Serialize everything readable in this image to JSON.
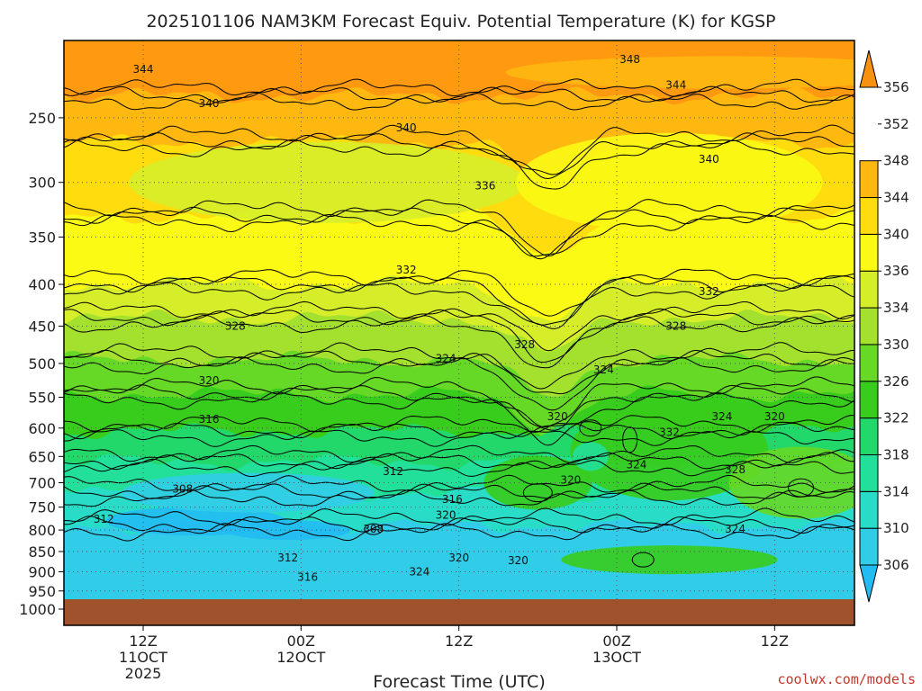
{
  "chart_data": {
    "type": "heatmap",
    "title": "2025101106 NAM3KM Forecast Equiv. Potential Temperature (K) for KGSP",
    "xlabel": "Forecast Time (UTC)",
    "ylabel": "",
    "y_scale": "log-pressure",
    "y_direction": "inverted",
    "ylim": [
      1000,
      200
    ],
    "y_ticks": [
      250,
      300,
      350,
      400,
      450,
      500,
      550,
      600,
      650,
      700,
      750,
      800,
      850,
      900,
      950,
      1000
    ],
    "x_ticks": [
      {
        "hour": 6,
        "line1": "12Z",
        "line2": "11OCT",
        "line3": "2025"
      },
      {
        "hour": 18,
        "line1": "00Z",
        "line2": "12OCT",
        "line3": ""
      },
      {
        "hour": 30,
        "line1": "12Z",
        "line2": "",
        "line3": ""
      },
      {
        "hour": 42,
        "line1": "00Z",
        "line2": "13OCT",
        "line3": ""
      },
      {
        "hour": 54,
        "line1": "12Z",
        "line2": "",
        "line3": ""
      }
    ],
    "xlim": [
      0,
      60
    ],
    "colorbar": {
      "levels": [
        306,
        310,
        314,
        318,
        322,
        326,
        330,
        334,
        336,
        340,
        344,
        348,
        352,
        356
      ],
      "colors": [
        "#22bbf2",
        "#31cde8",
        "#29dcc8",
        "#22e09a",
        "#22d86a",
        "#38cc1c",
        "#66d826",
        "#a4e02e",
        "#d6ee2a",
        "#fafa14",
        "#ffdc0e",
        "#ffb810",
        "#f69210"
      ]
    },
    "ground_color": "#a0522d",
    "contour_interval": 4,
    "labeled_contours": [
      {
        "v": "344",
        "h": 6,
        "p": 218
      },
      {
        "v": "348",
        "h": 43,
        "p": 212
      },
      {
        "v": "344",
        "h": 46.5,
        "p": 228
      },
      {
        "v": "340",
        "h": 11,
        "p": 240
      },
      {
        "v": "340",
        "h": 26,
        "p": 257
      },
      {
        "v": "340",
        "h": 49,
        "p": 281
      },
      {
        "v": "336",
        "h": 32,
        "p": 303
      },
      {
        "v": "332",
        "h": 26,
        "p": 384
      },
      {
        "v": "332",
        "h": 49,
        "p": 408
      },
      {
        "v": "328",
        "h": 13,
        "p": 450
      },
      {
        "v": "328",
        "h": 46.5,
        "p": 450
      },
      {
        "v": "328",
        "h": 35,
        "p": 474
      },
      {
        "v": "324",
        "h": 29,
        "p": 493
      },
      {
        "v": "324",
        "h": 41,
        "p": 509
      },
      {
        "v": "320",
        "h": 11,
        "p": 525
      },
      {
        "v": "316",
        "h": 11,
        "p": 585
      },
      {
        "v": "320",
        "h": 37.5,
        "p": 581
      },
      {
        "v": "320",
        "h": 54,
        "p": 581
      },
      {
        "v": "324",
        "h": 50,
        "p": 581
      },
      {
        "v": "332",
        "h": 46,
        "p": 607
      },
      {
        "v": "324",
        "h": 43.5,
        "p": 665
      },
      {
        "v": "328",
        "h": 51,
        "p": 675
      },
      {
        "v": "312",
        "h": 25,
        "p": 678
      },
      {
        "v": "320",
        "h": 38.5,
        "p": 695
      },
      {
        "v": "308",
        "h": 9,
        "p": 713
      },
      {
        "v": "316",
        "h": 29.5,
        "p": 734
      },
      {
        "v": "320",
        "h": 29,
        "p": 767
      },
      {
        "v": "312",
        "h": 3,
        "p": 776
      },
      {
        "v": "308",
        "h": 23.5,
        "p": 798
      },
      {
        "v": "324",
        "h": 51,
        "p": 798
      },
      {
        "v": "312",
        "h": 17,
        "p": 865
      },
      {
        "v": "320",
        "h": 30,
        "p": 865
      },
      {
        "v": "320",
        "h": 34.5,
        "p": 872
      },
      {
        "v": "324",
        "h": 27,
        "p": 900
      },
      {
        "v": "316",
        "h": 18.5,
        "p": 914
      }
    ]
  },
  "credit": "coolwx.com/models"
}
